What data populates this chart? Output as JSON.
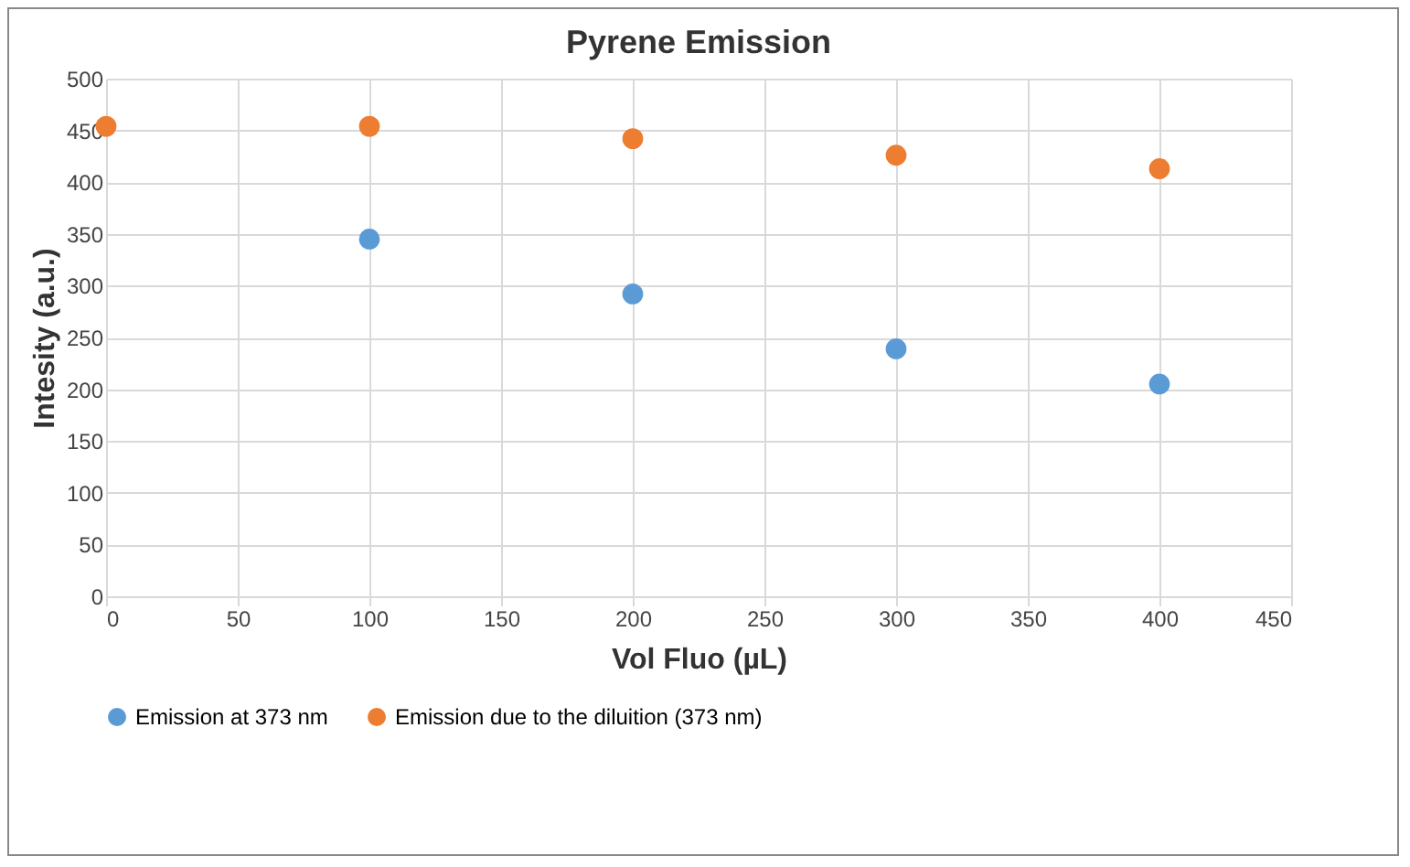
{
  "chart_data": {
    "type": "scatter",
    "title": "Pyrene Emission",
    "xlabel": "Vol Fluo (µL)",
    "ylabel": "Intesity (a.u.)",
    "x": [
      0,
      100,
      200,
      300,
      400
    ],
    "series": [
      {
        "name": "Emission at 373 nm",
        "color": "#5b9bd5",
        "values": [
          null,
          345,
          292,
          239,
          205
        ]
      },
      {
        "name": "Emission due to the diluition (373 nm)",
        "color": "#ed7d31",
        "values": [
          454,
          454,
          442,
          426,
          413
        ]
      }
    ],
    "xlim": [
      0,
      450
    ],
    "xticks": [
      0,
      50,
      100,
      150,
      200,
      250,
      300,
      350,
      400,
      450
    ],
    "ylim": [
      0,
      500
    ],
    "yticks": [
      0,
      50,
      100,
      150,
      200,
      250,
      300,
      350,
      400,
      450,
      500
    ],
    "grid": true,
    "legend": "bottom",
    "marker": "circle"
  }
}
